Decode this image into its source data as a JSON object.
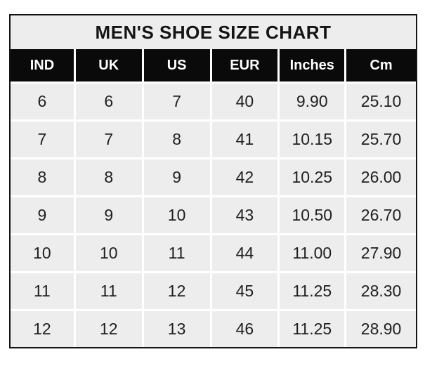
{
  "chart_data": {
    "type": "table",
    "title": "MEN'S SHOE SIZE CHART",
    "columns": [
      "IND",
      "UK",
      "US",
      "EUR",
      "Inches",
      "Cm"
    ],
    "rows": [
      [
        "6",
        "6",
        "7",
        "40",
        "9.90",
        "25.10"
      ],
      [
        "7",
        "7",
        "8",
        "41",
        "10.15",
        "25.70"
      ],
      [
        "8",
        "8",
        "9",
        "42",
        "10.25",
        "26.00"
      ],
      [
        "9",
        "9",
        "10",
        "43",
        "10.50",
        "26.70"
      ],
      [
        "10",
        "10",
        "11",
        "44",
        "11.00",
        "27.90"
      ],
      [
        "11",
        "11",
        "12",
        "45",
        "11.25",
        "28.30"
      ],
      [
        "12",
        "12",
        "13",
        "46",
        "11.25",
        "28.90"
      ]
    ],
    "layout": {
      "legend": "none",
      "grid": "on"
    }
  },
  "colors": {
    "header_bg": "#0a0a0a",
    "header_text": "#ffffff",
    "title_bg": "#ededed",
    "row_bg": "#ededed",
    "gridline": "#ffffff",
    "outer_border": "#141414",
    "body_text": "#1f1f1f",
    "page_bg": "#ffffff"
  }
}
